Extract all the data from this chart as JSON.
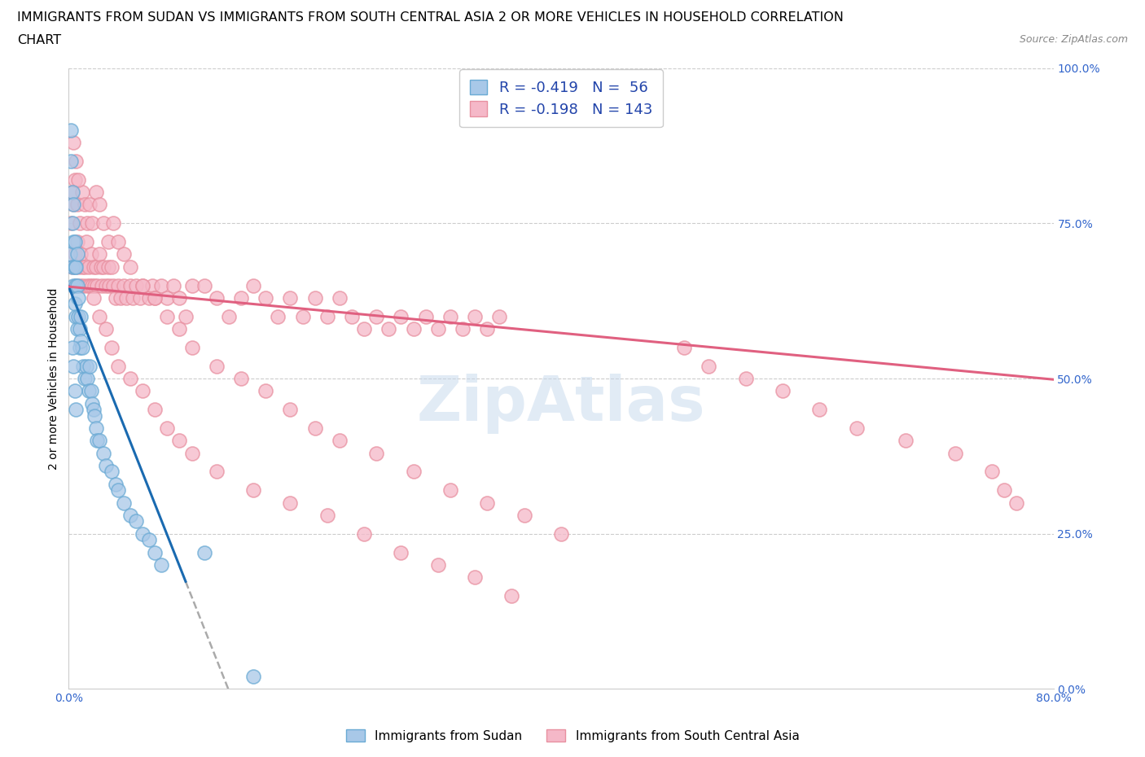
{
  "title_line1": "IMMIGRANTS FROM SUDAN VS IMMIGRANTS FROM SOUTH CENTRAL ASIA 2 OR MORE VEHICLES IN HOUSEHOLD CORRELATION",
  "title_line2": "CHART",
  "source_text": "Source: ZipAtlas.com",
  "ylabel": "2 or more Vehicles in Household",
  "watermark": "ZipAtlas",
  "xlim": [
    0.0,
    0.8
  ],
  "ylim": [
    0.0,
    1.0
  ],
  "sudan_color": "#a8c8e8",
  "sudan_edge": "#6aaad4",
  "sca_color": "#f5b8c8",
  "sca_edge": "#e890a0",
  "sudan_line_color": "#1a6ab0",
  "sca_line_color": "#e06080",
  "R_sudan": -0.419,
  "N_sudan": 56,
  "R_sca": -0.198,
  "N_sca": 143,
  "legend_label_sudan": "Immigrants from Sudan",
  "legend_label_sca": "Immigrants from South Central Asia",
  "title_fontsize": 11.5,
  "axis_label_fontsize": 10,
  "tick_fontsize": 10,
  "sudan_x": [
    0.001,
    0.002,
    0.002,
    0.003,
    0.003,
    0.003,
    0.004,
    0.004,
    0.004,
    0.005,
    0.005,
    0.005,
    0.006,
    0.006,
    0.006,
    0.007,
    0.007,
    0.007,
    0.008,
    0.008,
    0.009,
    0.009,
    0.01,
    0.01,
    0.011,
    0.012,
    0.013,
    0.014,
    0.015,
    0.016,
    0.017,
    0.018,
    0.019,
    0.02,
    0.021,
    0.022,
    0.023,
    0.025,
    0.028,
    0.03,
    0.035,
    0.038,
    0.04,
    0.045,
    0.05,
    0.055,
    0.06,
    0.065,
    0.07,
    0.075,
    0.003,
    0.004,
    0.005,
    0.006,
    0.15,
    0.11
  ],
  "sudan_y": [
    0.7,
    0.85,
    0.9,
    0.75,
    0.8,
    0.68,
    0.72,
    0.78,
    0.65,
    0.68,
    0.72,
    0.62,
    0.65,
    0.68,
    0.6,
    0.65,
    0.7,
    0.58,
    0.63,
    0.6,
    0.58,
    0.55,
    0.6,
    0.56,
    0.55,
    0.52,
    0.5,
    0.52,
    0.5,
    0.48,
    0.52,
    0.48,
    0.46,
    0.45,
    0.44,
    0.42,
    0.4,
    0.4,
    0.38,
    0.36,
    0.35,
    0.33,
    0.32,
    0.3,
    0.28,
    0.27,
    0.25,
    0.24,
    0.22,
    0.2,
    0.55,
    0.52,
    0.48,
    0.45,
    0.02,
    0.22
  ],
  "sca_x": [
    0.002,
    0.003,
    0.004,
    0.005,
    0.006,
    0.007,
    0.008,
    0.009,
    0.01,
    0.011,
    0.012,
    0.013,
    0.014,
    0.015,
    0.016,
    0.017,
    0.018,
    0.019,
    0.02,
    0.021,
    0.022,
    0.023,
    0.025,
    0.026,
    0.027,
    0.028,
    0.03,
    0.032,
    0.033,
    0.035,
    0.036,
    0.038,
    0.04,
    0.042,
    0.045,
    0.047,
    0.05,
    0.052,
    0.055,
    0.058,
    0.06,
    0.065,
    0.068,
    0.07,
    0.075,
    0.08,
    0.085,
    0.09,
    0.095,
    0.1,
    0.11,
    0.12,
    0.13,
    0.14,
    0.15,
    0.16,
    0.17,
    0.18,
    0.19,
    0.2,
    0.21,
    0.22,
    0.23,
    0.24,
    0.25,
    0.26,
    0.27,
    0.28,
    0.29,
    0.3,
    0.31,
    0.32,
    0.33,
    0.34,
    0.35,
    0.003,
    0.005,
    0.007,
    0.009,
    0.011,
    0.013,
    0.015,
    0.017,
    0.019,
    0.022,
    0.025,
    0.028,
    0.032,
    0.036,
    0.04,
    0.045,
    0.05,
    0.06,
    0.07,
    0.08,
    0.09,
    0.1,
    0.12,
    0.14,
    0.16,
    0.18,
    0.2,
    0.22,
    0.25,
    0.28,
    0.31,
    0.34,
    0.37,
    0.4,
    0.02,
    0.025,
    0.03,
    0.035,
    0.04,
    0.05,
    0.06,
    0.07,
    0.08,
    0.09,
    0.1,
    0.12,
    0.15,
    0.18,
    0.21,
    0.24,
    0.27,
    0.3,
    0.33,
    0.36,
    0.5,
    0.52,
    0.55,
    0.58,
    0.61,
    0.64,
    0.68,
    0.72,
    0.75,
    0.76,
    0.77,
    0.004,
    0.006,
    0.008
  ],
  "sca_y": [
    0.75,
    0.68,
    0.78,
    0.7,
    0.65,
    0.72,
    0.68,
    0.65,
    0.7,
    0.68,
    0.65,
    0.68,
    0.72,
    0.65,
    0.68,
    0.65,
    0.7,
    0.65,
    0.68,
    0.65,
    0.68,
    0.65,
    0.7,
    0.68,
    0.65,
    0.68,
    0.65,
    0.68,
    0.65,
    0.68,
    0.65,
    0.63,
    0.65,
    0.63,
    0.65,
    0.63,
    0.65,
    0.63,
    0.65,
    0.63,
    0.65,
    0.63,
    0.65,
    0.63,
    0.65,
    0.63,
    0.65,
    0.63,
    0.6,
    0.65,
    0.65,
    0.63,
    0.6,
    0.63,
    0.65,
    0.63,
    0.6,
    0.63,
    0.6,
    0.63,
    0.6,
    0.63,
    0.6,
    0.58,
    0.6,
    0.58,
    0.6,
    0.58,
    0.6,
    0.58,
    0.6,
    0.58,
    0.6,
    0.58,
    0.6,
    0.8,
    0.82,
    0.78,
    0.75,
    0.8,
    0.78,
    0.75,
    0.78,
    0.75,
    0.8,
    0.78,
    0.75,
    0.72,
    0.75,
    0.72,
    0.7,
    0.68,
    0.65,
    0.63,
    0.6,
    0.58,
    0.55,
    0.52,
    0.5,
    0.48,
    0.45,
    0.42,
    0.4,
    0.38,
    0.35,
    0.32,
    0.3,
    0.28,
    0.25,
    0.63,
    0.6,
    0.58,
    0.55,
    0.52,
    0.5,
    0.48,
    0.45,
    0.42,
    0.4,
    0.38,
    0.35,
    0.32,
    0.3,
    0.28,
    0.25,
    0.22,
    0.2,
    0.18,
    0.15,
    0.55,
    0.52,
    0.5,
    0.48,
    0.45,
    0.42,
    0.4,
    0.38,
    0.35,
    0.32,
    0.3,
    0.88,
    0.85,
    0.82
  ],
  "sca_intercept": 0.648,
  "sca_slope": -0.187,
  "sudan_intercept": 0.648,
  "sudan_slope": -5.0
}
